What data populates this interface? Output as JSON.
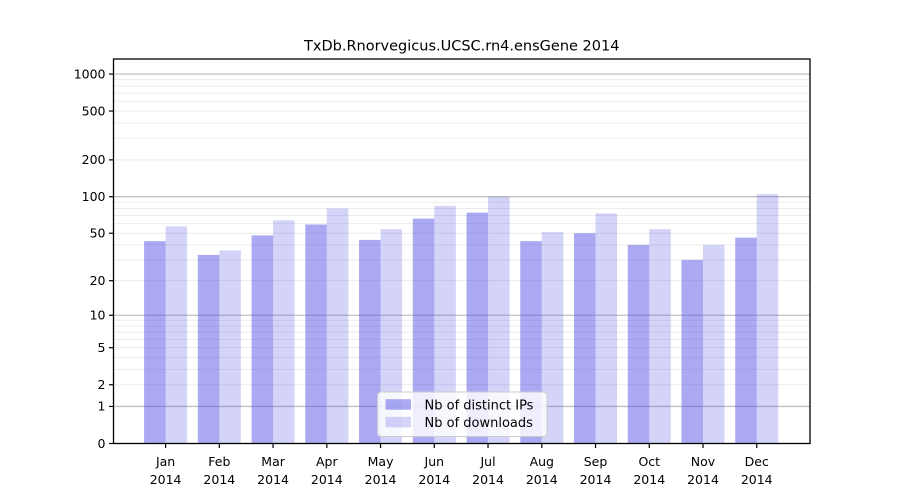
{
  "title": "TxDb.Rnorvegicus.UCSC.rn4.ensGene 2014",
  "chart_data": {
    "type": "bar",
    "title": "TxDb.Rnorvegicus.UCSC.rn4.ensGene 2014",
    "categories": [
      "Jan",
      "Feb",
      "Mar",
      "Apr",
      "May",
      "Jun",
      "Jul",
      "Aug",
      "Sep",
      "Oct",
      "Nov",
      "Dec"
    ],
    "category_year": "2014",
    "series": [
      {
        "name": "Nb of distinct IPs",
        "values": [
          43,
          33,
          48,
          59,
          44,
          66,
          74,
          43,
          50,
          40,
          30,
          46
        ],
        "color": "#5553e5",
        "fill_opacity": 0.5
      },
      {
        "name": "Nb of downloads",
        "values": [
          57,
          36,
          64,
          80,
          54,
          84,
          100,
          51,
          73,
          54,
          40,
          105
        ],
        "color": "#5553e5",
        "fill_opacity": 0.25
      }
    ],
    "y_axis": {
      "scale": "log1p",
      "ticks": [
        0,
        1,
        2,
        5,
        10,
        20,
        50,
        100,
        200,
        500,
        1000
      ],
      "range": [
        0,
        1330
      ]
    },
    "x_axis": {
      "tick_label_line1": [
        "Jan",
        "Feb",
        "Mar",
        "Apr",
        "May",
        "Jun",
        "Jul",
        "Aug",
        "Sep",
        "Oct",
        "Nov",
        "Dec"
      ],
      "tick_label_line2": "2014"
    },
    "grid": {
      "on": true,
      "minor_color": "#ebebeb",
      "major_color": "#c0c0c0",
      "major_at": [
        1,
        10,
        100,
        1000
      ]
    },
    "legend": {
      "position": "bottom-center",
      "entries": [
        "Nb of distinct IPs",
        "Nb of downloads"
      ]
    },
    "colors": {
      "bar_base": "#5553e5",
      "axis": "#000000",
      "background": "#ffffff"
    }
  }
}
